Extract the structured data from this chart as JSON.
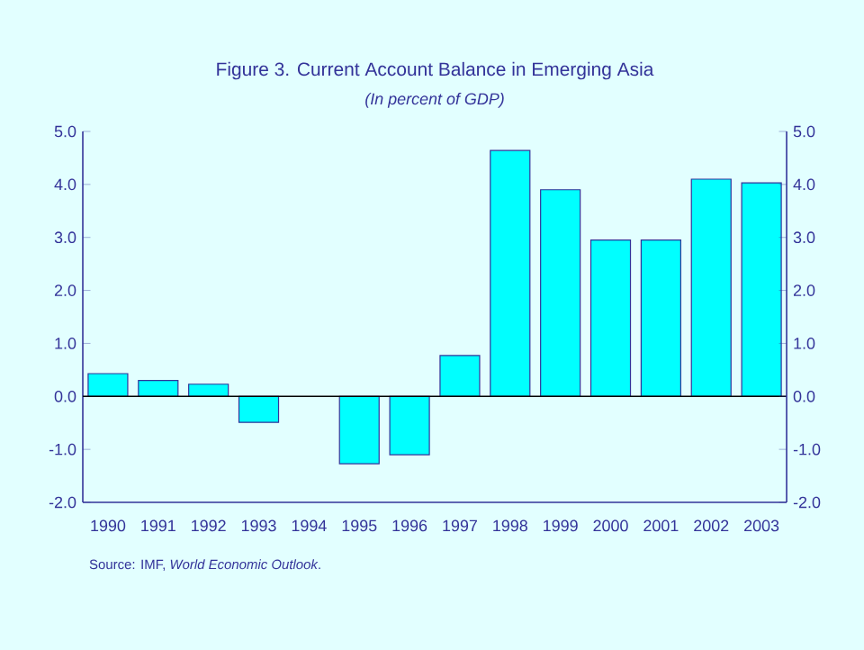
{
  "chart_data": {
    "type": "bar",
    "title": "Figure 3. Current Account Balance in Emerging Asia",
    "subtitle": "(In percent of GDP)",
    "categories": [
      "1990",
      "1991",
      "1992",
      "1993",
      "1994",
      "1995",
      "1996",
      "1997",
      "1998",
      "1999",
      "2000",
      "2001",
      "2002",
      "2003"
    ],
    "values": [
      0.43,
      0.3,
      0.23,
      -0.49,
      null,
      -1.27,
      -1.1,
      0.77,
      4.64,
      3.9,
      2.95,
      2.95,
      4.1,
      4.03
    ],
    "color": "#00ffff",
    "ylim": [
      -2,
      5
    ],
    "yticks": [
      {
        "value": -2,
        "label": "-2.0"
      },
      {
        "value": -1,
        "label": "-1.0"
      },
      {
        "value": 0,
        "label": "0.0"
      },
      {
        "value": 1,
        "label": "1.0"
      },
      {
        "value": 2,
        "label": "2.0"
      },
      {
        "value": 3,
        "label": "3.0"
      },
      {
        "value": 4,
        "label": "4.0"
      },
      {
        "value": 5,
        "label": "5.0"
      }
    ],
    "y2lim": [
      -2,
      5
    ],
    "y2ticks": [
      {
        "value": -2,
        "label": "-2.0"
      },
      {
        "value": -1,
        "label": "-1.0"
      },
      {
        "value": 0,
        "label": "0.0"
      },
      {
        "value": 1,
        "label": "1.0"
      },
      {
        "value": 2,
        "label": "2.0"
      },
      {
        "value": 3,
        "label": "3.0"
      },
      {
        "value": 4,
        "label": "4.0"
      },
      {
        "value": 5,
        "label": "5.0"
      }
    ],
    "annotations": [
      "Source: IMF, *World Economic Outlook*."
    ]
  }
}
